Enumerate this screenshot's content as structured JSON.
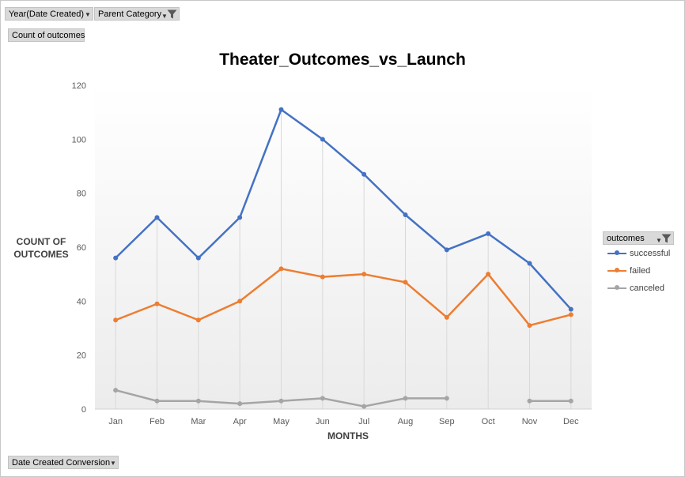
{
  "filters": {
    "year_label": "Year(Date Created)",
    "parent_label": "Parent Category",
    "values_label": "Count of outcomes",
    "axis_field_label": "Date Created Conversion",
    "legend_field_label": "outcomes"
  },
  "chart_data": {
    "type": "line",
    "title": "Theater_Outcomes_vs_Launch",
    "xlabel": "MONTHS",
    "ylabel": "COUNT OF OUTCOMES",
    "ylabel_lines": [
      "COUNT OF",
      "OUTCOMES"
    ],
    "categories": [
      "Jan",
      "Feb",
      "Mar",
      "Apr",
      "May",
      "Jun",
      "Jul",
      "Aug",
      "Sep",
      "Oct",
      "Nov",
      "Dec"
    ],
    "ylim": [
      0,
      120
    ],
    "yticks": [
      0,
      20,
      40,
      60,
      80,
      100,
      120
    ],
    "drop_lines": true,
    "legend_position": "right",
    "series": [
      {
        "name": "successful",
        "color": "#4472c4",
        "values": [
          56,
          71,
          56,
          71,
          111,
          100,
          87,
          72,
          59,
          65,
          54,
          37
        ]
      },
      {
        "name": "failed",
        "color": "#ed7d31",
        "values": [
          33,
          39,
          33,
          40,
          52,
          49,
          50,
          47,
          34,
          50,
          31,
          35
        ]
      },
      {
        "name": "canceled",
        "color": "#a5a5a5",
        "values": [
          7,
          3,
          3,
          2,
          3,
          4,
          1,
          4,
          4,
          null,
          3,
          3
        ]
      }
    ]
  }
}
